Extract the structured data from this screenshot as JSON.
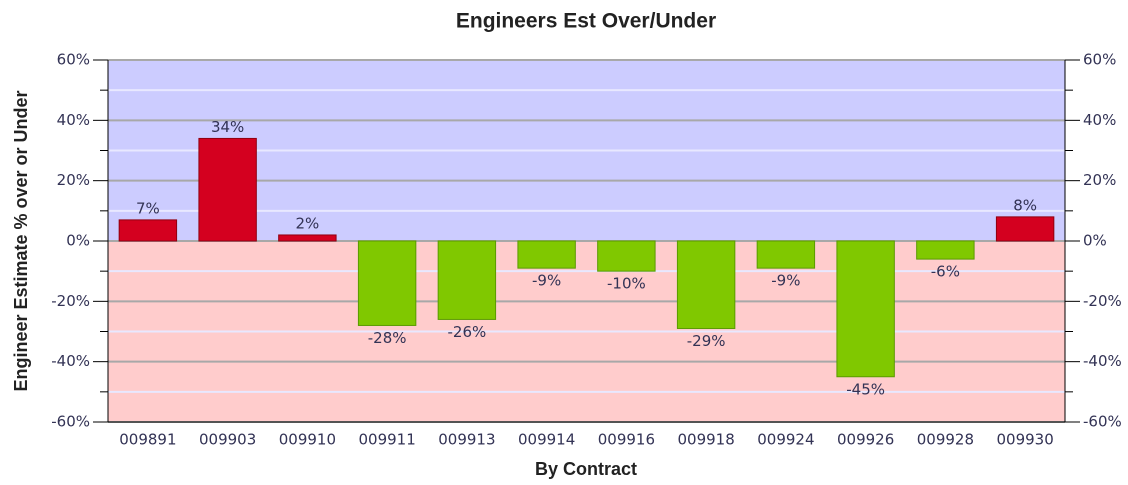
{
  "chart_data": {
    "type": "bar",
    "title": "Engineers Est Over/Under",
    "x_label": "By Contract",
    "y_label": "Engineer Estimate % over or Under",
    "categories": [
      "009891",
      "009903",
      "009910",
      "009911",
      "009913",
      "009914",
      "009916",
      "009918",
      "009924",
      "009926",
      "009928",
      "009930"
    ],
    "values": [
      7,
      34,
      2,
      -28,
      -26,
      -9,
      -10,
      -29,
      -9,
      -45,
      -6,
      8
    ],
    "value_labels": [
      "7%",
      "34%",
      "2%",
      "-28%",
      "-26%",
      "-9%",
      "-10%",
      "-29%",
      "-9%",
      "-45%",
      "-6%",
      "8%"
    ],
    "positive_color": "#d4001f",
    "negative_color": "#80c800",
    "positive_background": "#ccccff",
    "negative_background": "#ffcccc",
    "ylim": [
      -60,
      60
    ],
    "yticks": [
      {
        "value": -60,
        "label": "-60%"
      },
      {
        "value": -40,
        "label": "-40%"
      },
      {
        "value": -20,
        "label": "-20%"
      },
      {
        "value": 0,
        "label": "0%"
      },
      {
        "value": 20,
        "label": "20%"
      },
      {
        "value": 40,
        "label": "40%"
      },
      {
        "value": 60,
        "label": "60%"
      }
    ],
    "y2lim": [
      -60,
      60
    ],
    "y2ticks": [
      {
        "value": -60,
        "label": "-60%"
      },
      {
        "value": -40,
        "label": "-40%"
      },
      {
        "value": -20,
        "label": "-20%"
      },
      {
        "value": 0,
        "label": "0%"
      },
      {
        "value": 20,
        "label": "20%"
      },
      {
        "value": 40,
        "label": "40%"
      },
      {
        "value": 60,
        "label": "60%"
      }
    ],
    "grid": true
  }
}
